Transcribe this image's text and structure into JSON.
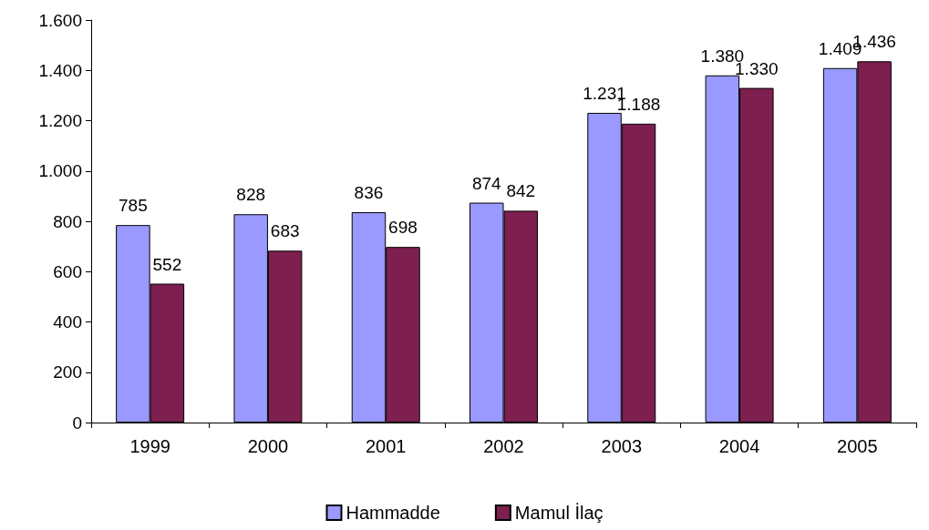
{
  "chart_data": {
    "type": "bar",
    "categories": [
      "1999",
      "2000",
      "2001",
      "2002",
      "2003",
      "2004",
      "2005"
    ],
    "series": [
      {
        "name": "Hammadde",
        "color": "#9999ff",
        "values": [
          785,
          828,
          836,
          874,
          1231,
          1380,
          1409
        ],
        "value_labels": [
          "785",
          "828",
          "836",
          "874",
          "1.231",
          "1.380",
          "1.409"
        ]
      },
      {
        "name": "Mamul İlaç",
        "color": "#7d1f4f",
        "values": [
          552,
          683,
          698,
          842,
          1188,
          1330,
          1436
        ],
        "value_labels": [
          "552",
          "683",
          "698",
          "842",
          "1.188",
          "1.330",
          "1.436"
        ]
      }
    ],
    "ylim": [
      0,
      1600
    ],
    "yticks": [
      0,
      {
        "value": 200,
        "label": "200"
      },
      {
        "value": 400,
        "label": "400"
      },
      {
        "value": 600,
        "label": "600"
      },
      {
        "value": 800,
        "label": "800"
      },
      {
        "value": 1000,
        "label": "1.000"
      },
      {
        "value": 1200,
        "label": "1.200"
      },
      {
        "value": 1400,
        "label": "1.400"
      },
      {
        "value": 1600,
        "label": "1.600"
      }
    ],
    "grid": false,
    "legend": "bottom"
  }
}
